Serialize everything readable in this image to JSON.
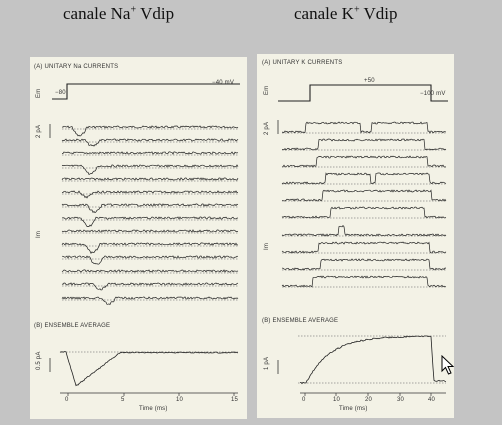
{
  "headings": {
    "left": {
      "main": "canale Na",
      "sup": "+",
      "rest": " Vdip"
    },
    "right": {
      "main": "canale K",
      "sup": "+",
      "rest": " Vdip"
    }
  },
  "na_panel": {
    "section_a": "(A)  UNITARY Na CURRENTS",
    "section_b": "(B)  ENSEMBLE AVERAGE",
    "v_start": "−80",
    "v_end": "−40 mV",
    "em_label": "Em",
    "scale_single": "2 pA",
    "im_label": "Im",
    "scale_avg": "0.5 pA",
    "time_ticks": [
      "0",
      "5",
      "10",
      "15"
    ],
    "time_label": "Time (ms)"
  },
  "k_panel": {
    "section_a": "(A)  UNITARY K CURRENTS",
    "section_b": "(B)  ENSEMBLE AVERAGE",
    "v_top": "+50",
    "v_end": "−100 mV",
    "em_label": "Em",
    "scale_single": "2 pA",
    "im_label": "Im",
    "scale_avg": "1 pA",
    "time_ticks": [
      "0",
      "10",
      "20",
      "30",
      "40"
    ],
    "time_label": "Time (ms)"
  }
}
